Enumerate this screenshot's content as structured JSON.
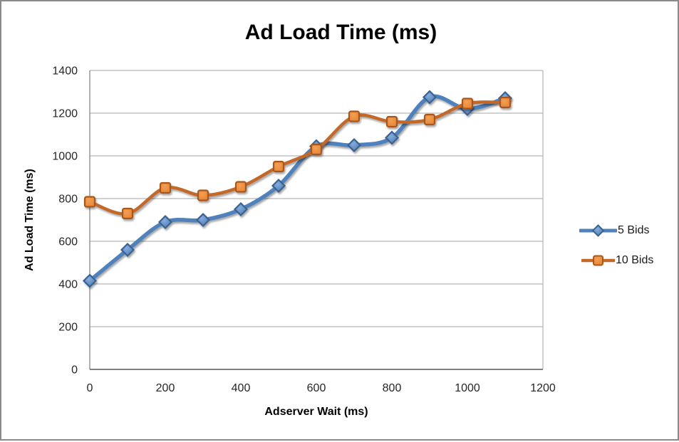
{
  "page": {
    "background": "#FFFFFF",
    "border_color": "#8A8A8A"
  },
  "chart_data": {
    "type": "line",
    "title": "Ad Load Time (ms)",
    "xlabel": "Adserver Wait (ms)",
    "ylabel": "Ad Load Time (ms)",
    "x": [
      0,
      100,
      200,
      300,
      400,
      500,
      600,
      700,
      800,
      900,
      1000,
      1100
    ],
    "series": [
      {
        "name": "5 Bids",
        "marker": "diamond",
        "line_color": "#4F81BD",
        "marker_fill_light": "#86ACDE",
        "marker_fill_dark": "#4B7CB5",
        "marker_stroke": "#3B628F",
        "values": [
          415,
          560,
          690,
          700,
          750,
          860,
          1045,
          1050,
          1085,
          1275,
          1220,
          1270
        ]
      },
      {
        "name": "10 Bids",
        "marker": "square",
        "line_color": "#C2692B",
        "marker_fill_light": "#F2A057",
        "marker_fill_dark": "#E68434",
        "marker_stroke": "#A9571B",
        "values": [
          785,
          730,
          850,
          815,
          855,
          950,
          1030,
          1185,
          1160,
          1170,
          1245,
          1250
        ]
      }
    ],
    "xlim": [
      0,
      1200
    ],
    "ylim": [
      0,
      1400
    ],
    "x_ticks": [
      0,
      200,
      400,
      600,
      800,
      1000,
      1200
    ],
    "y_ticks": [
      0,
      200,
      400,
      600,
      800,
      1000,
      1200,
      1400
    ],
    "grid": "horizontal",
    "grid_color": "#A6A6A6",
    "axis_color": "#808080",
    "tick_label_color": "#262626",
    "legend_position": "right",
    "smoothed": true
  }
}
